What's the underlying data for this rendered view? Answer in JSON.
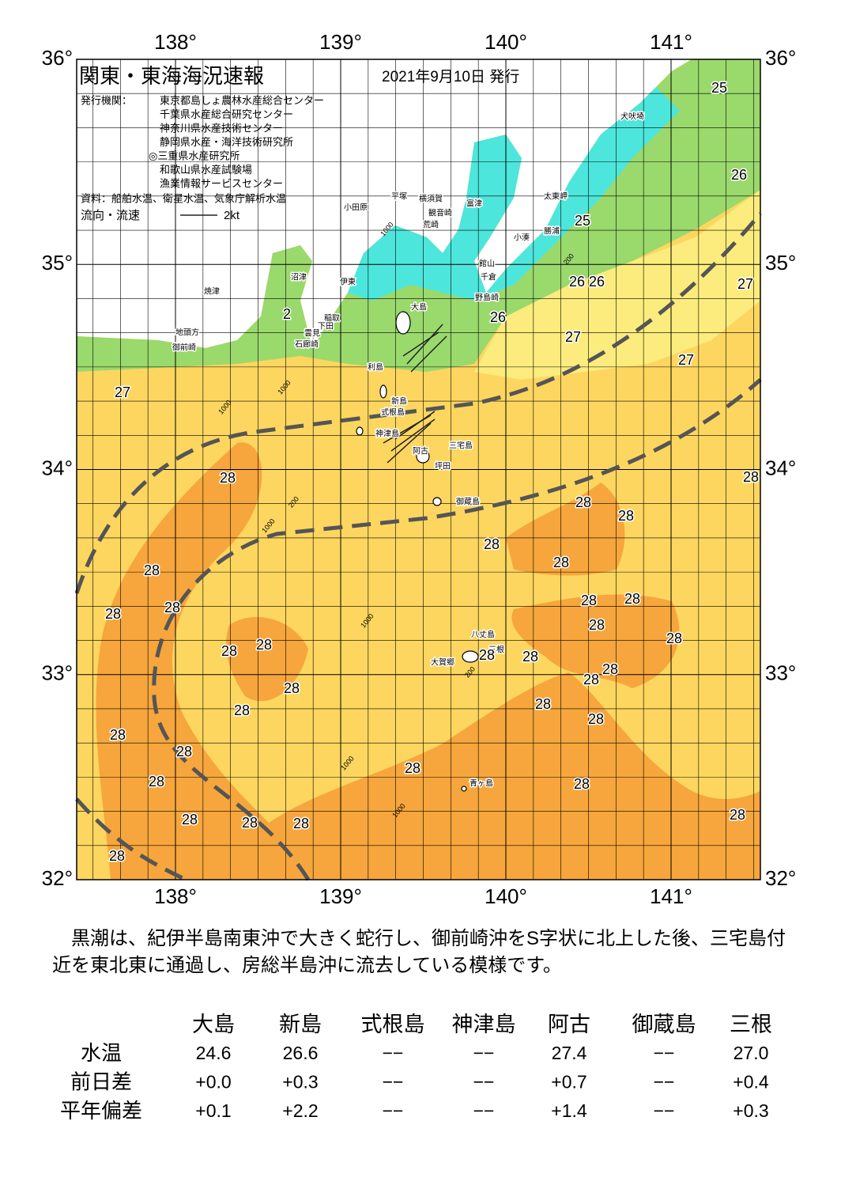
{
  "header": {
    "title": "関東・東海海況速報",
    "date": "2021年9月10日 発行",
    "issuer_label": "発行機関：",
    "issuers": [
      "東京都島しょ農林水産総合センター",
      "千葉県水産総合研究センター",
      "神奈川県水産技術センター",
      "静岡県水産・海洋技術研究所",
      "◎三重県水産研究所",
      "和歌山県水産試験場",
      "漁業情報サービスセンター"
    ],
    "source": "資料：船舶水温、衛星水温、気象庁解析水温",
    "legend_label": "流向・流速",
    "legend_speed": "2kt"
  },
  "map": {
    "lon_labels": [
      "138°",
      "139°",
      "140°",
      "141°"
    ],
    "lat_labels": [
      "36°",
      "35°",
      "34°",
      "33°",
      "32°"
    ],
    "places": [
      "犬吠埼",
      "太東岬",
      "富津",
      "勝浦",
      "小湊",
      "館山",
      "千倉",
      "野島崎",
      "小田原",
      "平塚",
      "横須賀",
      "観音崎",
      "荒崎",
      "沼津",
      "伊東",
      "焼津",
      "稲取",
      "下田",
      "雲見",
      "石廊崎",
      "地頭方",
      "御前崎",
      "大島",
      "利島",
      "新島",
      "式根島",
      "神津島",
      "三宅島",
      "阿古",
      "坪田",
      "御蔵島",
      "八丈島",
      "三根",
      "大賀郷",
      "青ヶ島"
    ],
    "depth_labels": [
      "1000",
      "200",
      "1000",
      "1000",
      "200",
      "1000",
      "1000",
      "1000",
      "1000",
      "200"
    ],
    "sst_labels": [
      25,
      26,
      25,
      26,
      26,
      27,
      26,
      27,
      27,
      27,
      28,
      28,
      28,
      28,
      28,
      28,
      28,
      28,
      28,
      28,
      28,
      28,
      28,
      28,
      28,
      28,
      28,
      28,
      28,
      28,
      28,
      28,
      28,
      28,
      28,
      28,
      28,
      28,
      28,
      28,
      28,
      28,
      28,
      2
    ]
  },
  "summary": "黒潮は、紀伊半島南東沖で大きく蛇行し、御前崎沖をS字状に北上した後、三宅島付近を東北東に通過し、房総半島沖に流去している模様です。",
  "table": {
    "columns": [
      "大島",
      "新島",
      "式根島",
      "神津島",
      "阿古",
      "御蔵島",
      "三根"
    ],
    "rows": [
      {
        "label": "水温",
        "values": [
          "24.6",
          "26.6",
          "−−",
          "−−",
          "27.4",
          "−−",
          "27.0"
        ]
      },
      {
        "label": "前日差",
        "values": [
          "+0.0",
          "+0.3",
          "−−",
          "−−",
          "+0.7",
          "−−",
          "+0.4"
        ]
      },
      {
        "label": "平年偏差",
        "values": [
          "+0.1",
          "+2.2",
          "−−",
          "−−",
          "+1.4",
          "−−",
          "+0.3"
        ]
      }
    ]
  }
}
